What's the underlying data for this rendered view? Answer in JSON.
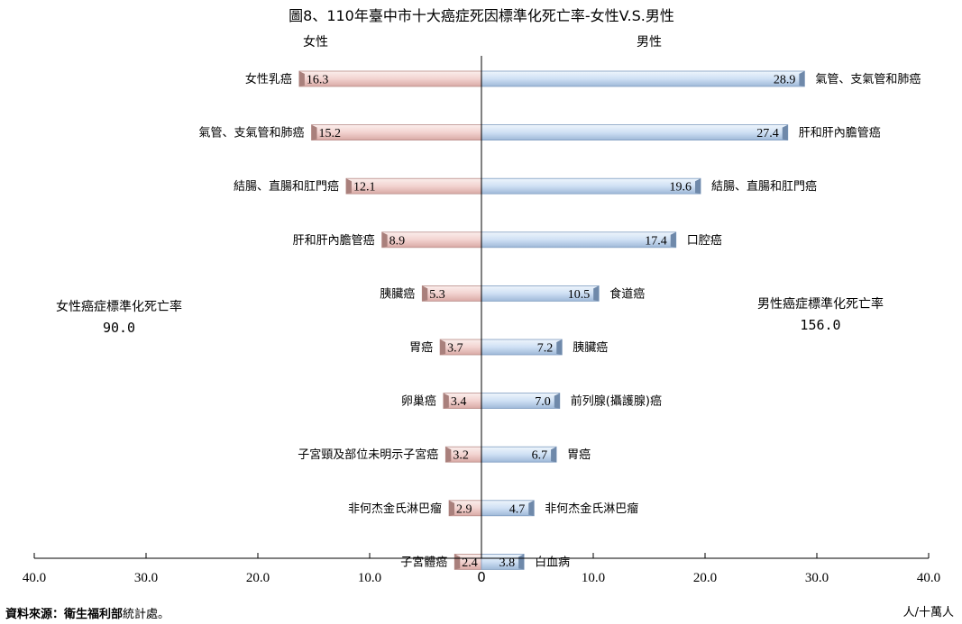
{
  "chart_data": {
    "type": "bar",
    "orientation": "horizontal-butterfly",
    "title": "圖8、110年臺中市十大癌症死因標準化死亡率-女性V.S.男性",
    "left_header": "女性",
    "right_header": "男性",
    "left_summary": {
      "label": "女性癌症標準化死亡率",
      "value": "90.0"
    },
    "right_summary": {
      "label": "男性癌症標準化死亡率",
      "value": "156.0"
    },
    "x_range": [
      -40,
      40
    ],
    "x_ticks": [
      {
        "value": -40,
        "label": "40.0"
      },
      {
        "value": -30,
        "label": "30.0"
      },
      {
        "value": -20,
        "label": "20.0"
      },
      {
        "value": -10,
        "label": "10.0"
      },
      {
        "value": 0,
        "label": "0"
      },
      {
        "value": 10,
        "label": "10.0"
      },
      {
        "value": 20,
        "label": "20.0"
      },
      {
        "value": 30,
        "label": "30.0"
      },
      {
        "value": 40,
        "label": "40.0"
      }
    ],
    "unit": "人/十萬人",
    "female": [
      {
        "label": "女性乳癌",
        "value": 16.3
      },
      {
        "label": "氣管、支氣管和肺癌",
        "value": 15.2
      },
      {
        "label": "結腸、直腸和肛門癌",
        "value": 12.1
      },
      {
        "label": "肝和肝內膽管癌",
        "value": 8.9
      },
      {
        "label": "胰臟癌",
        "value": 5.3
      },
      {
        "label": "胃癌",
        "value": 3.7
      },
      {
        "label": "卵巢癌",
        "value": 3.4
      },
      {
        "label": "子宮頸及部位未明示子宮癌",
        "value": 3.2
      },
      {
        "label": "非何杰金氏淋巴瘤",
        "value": 2.9
      },
      {
        "label": "子宮體癌",
        "value": 2.4
      }
    ],
    "male": [
      {
        "label": "氣管、支氣管和肺癌",
        "value": 28.9
      },
      {
        "label": "肝和肝內膽管癌",
        "value": 27.4
      },
      {
        "label": "結腸、直腸和肛門癌",
        "value": 19.6
      },
      {
        "label": "口腔癌",
        "value": 17.4
      },
      {
        "label": "食道癌",
        "value": 10.5
      },
      {
        "label": "胰臟癌",
        "value": 7.2
      },
      {
        "label": "前列腺(攝護腺)癌",
        "value": 7.0
      },
      {
        "label": "胃癌",
        "value": 6.7
      },
      {
        "label": "非何杰金氏淋巴瘤",
        "value": 4.7
      },
      {
        "label": "白血病",
        "value": 3.8
      }
    ],
    "colors": {
      "female": "#f2d3d0",
      "male": "#cfe0f4"
    }
  },
  "source": {
    "prefix": "資料來源：衛生福利部",
    "suffix": "統計處。"
  }
}
